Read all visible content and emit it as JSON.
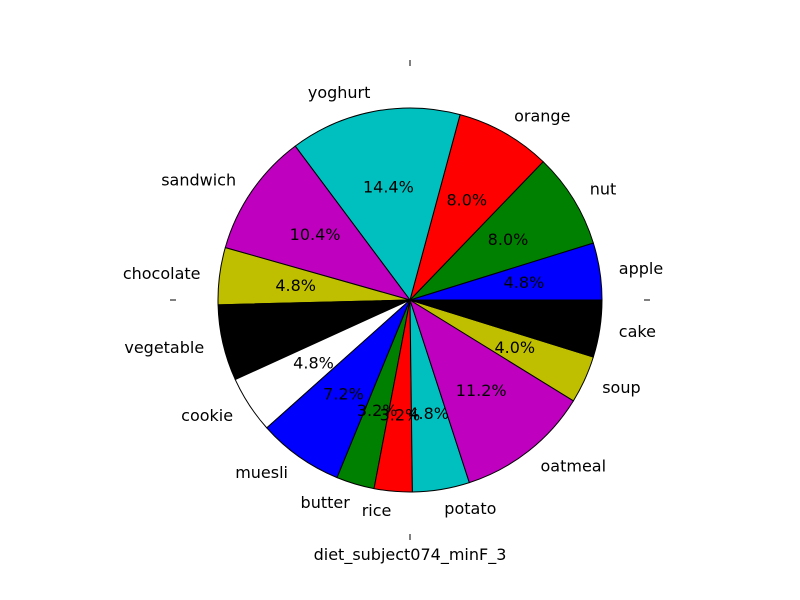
{
  "chart_data": {
    "type": "pie",
    "xlabel": "diet_subject074_minF_3",
    "start_angle_deg": 0,
    "direction": "counterclockwise",
    "slices": [
      {
        "label": "apple",
        "value": 4.8,
        "pct_label": "4.8%",
        "color": "#0000ff"
      },
      {
        "label": "nut",
        "value": 8.0,
        "pct_label": "8.0%",
        "color": "#008000"
      },
      {
        "label": "orange",
        "value": 8.0,
        "pct_label": "8.0%",
        "color": "#ff0000"
      },
      {
        "label": "yoghurt",
        "value": 14.4,
        "pct_label": "14.4%",
        "color": "#00bfbf"
      },
      {
        "label": "sandwich",
        "value": 10.4,
        "pct_label": "10.4%",
        "color": "#bf00bf"
      },
      {
        "label": "chocolate",
        "value": 4.8,
        "pct_label": "4.8%",
        "color": "#bfbf00"
      },
      {
        "label": "vegetable",
        "value": 6.4,
        "pct_label": "6.4%",
        "color": "#000000"
      },
      {
        "label": "cookie",
        "value": 4.8,
        "pct_label": "4.8%",
        "color": "#ffffff"
      },
      {
        "label": "muesli",
        "value": 7.2,
        "pct_label": "7.2%",
        "color": "#0000ff"
      },
      {
        "label": "butter",
        "value": 3.2,
        "pct_label": "3.2%",
        "color": "#008000"
      },
      {
        "label": "rice",
        "value": 3.2,
        "pct_label": "3.2%",
        "color": "#ff0000"
      },
      {
        "label": "potato",
        "value": 4.8,
        "pct_label": "4.8%",
        "color": "#00bfbf"
      },
      {
        "label": "oatmeal",
        "value": 11.2,
        "pct_label": "11.2%",
        "color": "#bf00bf"
      },
      {
        "label": "soup",
        "value": 4.0,
        "pct_label": "4.0%",
        "color": "#bfbf00"
      },
      {
        "label": "cake",
        "value": 4.8,
        "pct_label": "4.8%",
        "color": "#000000"
      }
    ]
  }
}
